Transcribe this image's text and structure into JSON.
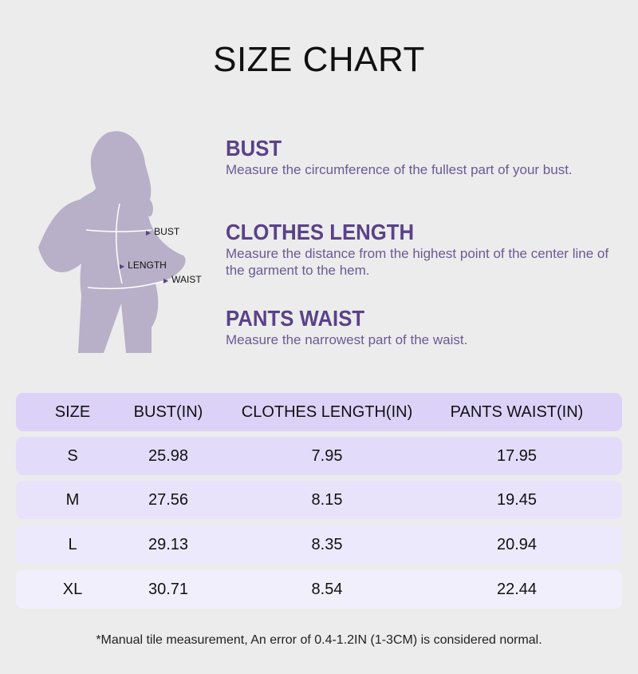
{
  "title": "SIZE CHART",
  "figure": {
    "labels": [
      "BUST",
      "LENGTH",
      "WAIST"
    ],
    "color": "#b8b0c8"
  },
  "sections": [
    {
      "heading": "BUST",
      "text": "Measure the circumference of the fullest part of your bust."
    },
    {
      "heading": "CLOTHES LENGTH",
      "text": "Measure the distance from the highest point of the center line of the garment to the hem."
    },
    {
      "heading": "PANTS WAIST",
      "text": "Measure the narrowest part of the waist."
    }
  ],
  "table": {
    "headers": [
      "SIZE",
      "BUST(IN)",
      "CLOTHES LENGTH(IN)",
      "PANTS WAIST(IN)"
    ],
    "rows": [
      [
        "S",
        "25.98",
        "7.95",
        "17.95"
      ],
      [
        "M",
        "27.56",
        "8.15",
        "19.45"
      ],
      [
        "L",
        "29.13",
        "8.35",
        "20.94"
      ],
      [
        "XL",
        "30.71",
        "8.54",
        "22.44"
      ]
    ]
  },
  "colors": {
    "accent": "#5a4288",
    "header_bg": "#dcd2f8",
    "row_bgs": [
      "#e2dcfa",
      "#e8e3fb",
      "#ede9fc",
      "#f2effd"
    ]
  },
  "note": "*Manual tile measurement, An error of 0.4-1.2IN (1-3CM) is considered normal."
}
